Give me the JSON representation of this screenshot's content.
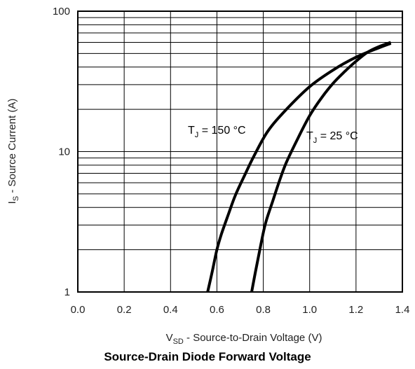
{
  "chart_data": {
    "type": "line",
    "title": "Source-Drain Diode Forward Voltage",
    "xlabel": {
      "main": "V",
      "sub": "SD",
      "rest": " - Source-to-Drain Voltage (V)"
    },
    "ylabel": {
      "main": "I",
      "sub": "S",
      "rest": " - Source Current (A)"
    },
    "xlim": [
      0.0,
      1.4
    ],
    "ylim": [
      1,
      100
    ],
    "yscale": "log",
    "grid": true,
    "x_ticks": [
      "0.0",
      "0.2",
      "0.4",
      "0.6",
      "0.8",
      "1.0",
      "1.2",
      "1.4"
    ],
    "y_ticks": [
      "1",
      "10",
      "100"
    ],
    "series": [
      {
        "name": {
          "main": "T",
          "sub": "J",
          "rest": " = 150 °C"
        },
        "x": [
          0.56,
          0.58,
          0.6,
          0.62,
          0.65,
          0.68,
          0.72,
          0.76,
          0.82,
          0.9,
          1.0,
          1.1,
          1.2,
          1.3,
          1.35
        ],
        "y": [
          1.0,
          1.4,
          2.0,
          2.6,
          3.6,
          4.9,
          6.8,
          9.3,
          14,
          20,
          29,
          38,
          47,
          55,
          59
        ]
      },
      {
        "name": {
          "main": "T",
          "sub": "J",
          "rest": " = 25 °C"
        },
        "x": [
          0.75,
          0.77,
          0.79,
          0.81,
          0.84,
          0.87,
          0.9,
          0.95,
          1.0,
          1.05,
          1.1,
          1.15,
          1.2,
          1.25,
          1.3,
          1.35
        ],
        "y": [
          1.0,
          1.5,
          2.2,
          3.1,
          4.4,
          6.2,
          8.4,
          12.5,
          18,
          24,
          30.5,
          37,
          44,
          51,
          56,
          60
        ]
      }
    ]
  }
}
